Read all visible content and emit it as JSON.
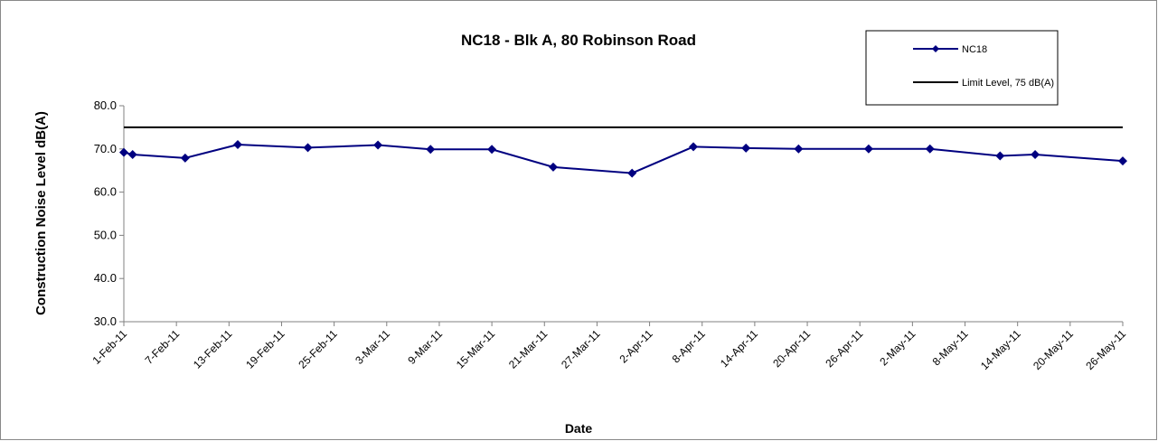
{
  "chart_data": {
    "type": "line",
    "title": "NC18 - Blk A, 80 Robinson Road",
    "y_label": "Construction Noise Level  dB(A)",
    "x_label": "Date",
    "x": [
      "2011-02-01",
      "2011-02-02",
      "2011-02-08",
      "2011-02-14",
      "2011-02-22",
      "2011-03-02",
      "2011-03-08",
      "2011-03-15",
      "2011-03-22",
      "2011-03-31",
      "2011-04-07",
      "2011-04-13",
      "2011-04-19",
      "2011-04-27",
      "2011-05-04",
      "2011-05-12",
      "2011-05-16",
      "2011-05-26"
    ],
    "series": [
      {
        "name": "NC18",
        "color": "#000080",
        "marker": "diamond",
        "values": [
          69.2,
          68.7,
          67.9,
          71.0,
          70.3,
          70.9,
          69.9,
          69.9,
          65.8,
          64.4,
          70.5,
          70.2,
          70.0,
          70.0,
          70.0,
          68.4,
          68.7,
          67.2
        ]
      },
      {
        "name": "Limit Level, 75 dB(A)",
        "color": "#000000",
        "marker": "none",
        "values": [
          75,
          75,
          75,
          75,
          75,
          75,
          75,
          75,
          75,
          75,
          75,
          75,
          75,
          75,
          75,
          75,
          75,
          75
        ]
      }
    ],
    "xlim": [
      "2011-02-01",
      "2011-05-26"
    ],
    "xticks": [
      {
        "value": "2011-02-01",
        "label": "1-Feb-11"
      },
      {
        "value": "2011-02-07",
        "label": "7-Feb-11"
      },
      {
        "value": "2011-02-13",
        "label": "13-Feb-11"
      },
      {
        "value": "2011-02-19",
        "label": "19-Feb-11"
      },
      {
        "value": "2011-02-25",
        "label": "25-Feb-11"
      },
      {
        "value": "2011-03-03",
        "label": "3-Mar-11"
      },
      {
        "value": "2011-03-09",
        "label": "9-Mar-11"
      },
      {
        "value": "2011-03-15",
        "label": "15-Mar-11"
      },
      {
        "value": "2011-03-21",
        "label": "21-Mar-11"
      },
      {
        "value": "2011-03-27",
        "label": "27-Mar-11"
      },
      {
        "value": "2011-04-02",
        "label": "2-Apr-11"
      },
      {
        "value": "2011-04-08",
        "label": "8-Apr-11"
      },
      {
        "value": "2011-04-14",
        "label": "14-Apr-11"
      },
      {
        "value": "2011-04-20",
        "label": "20-Apr-11"
      },
      {
        "value": "2011-04-26",
        "label": "26-Apr-11"
      },
      {
        "value": "2011-05-02",
        "label": "2-May-11"
      },
      {
        "value": "2011-05-08",
        "label": "8-May-11"
      },
      {
        "value": "2011-05-14",
        "label": "14-May-11"
      },
      {
        "value": "2011-05-20",
        "label": "20-May-11"
      },
      {
        "value": "2011-05-26",
        "label": "26-May-11"
      }
    ],
    "ylim": [
      30,
      80
    ],
    "yticks": [
      {
        "value": 30,
        "label": "30.0"
      },
      {
        "value": 40,
        "label": "40.0"
      },
      {
        "value": 50,
        "label": "50.0"
      },
      {
        "value": 60,
        "label": "60.0"
      },
      {
        "value": 70,
        "label": "70.0"
      },
      {
        "value": 80,
        "label": "80.0"
      }
    ],
    "grid": false,
    "legend": "top-right"
  }
}
